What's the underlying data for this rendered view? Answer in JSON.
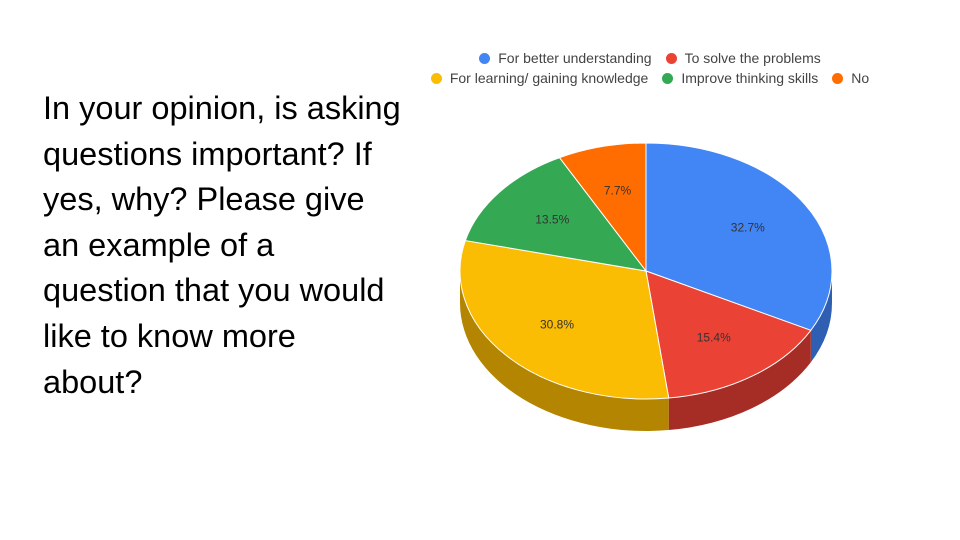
{
  "slide": {
    "question": "In your opinion, is asking questions important? If yes, why? Please give an example of a question that you would like to know more about?"
  },
  "chart_data": {
    "type": "pie",
    "style": "3d",
    "legend_position": "top",
    "title": "",
    "series": [
      {
        "name": "For better understanding",
        "value": 32.7,
        "label": "32.7%",
        "color": "#4285F4",
        "side_color": "#2F5FB3"
      },
      {
        "name": "To solve the problems",
        "value": 15.4,
        "label": "15.4%",
        "color": "#EA4335",
        "side_color": "#A52D26"
      },
      {
        "name": "For learning/ gaining knowledge",
        "value": 30.8,
        "label": "30.8%",
        "color": "#FBBC04",
        "side_color": "#B48500"
      },
      {
        "name": "Improve thinking skills",
        "value": 13.5,
        "label": "13.5%",
        "color": "#34A853",
        "side_color": "#24773A"
      },
      {
        "name": "No",
        "value": 7.7,
        "label": "7.7%",
        "color": "#FF6D01",
        "side_color": "#B44D00"
      }
    ],
    "legend_rows": [
      [
        0,
        1
      ],
      [
        2,
        3,
        4
      ]
    ]
  }
}
